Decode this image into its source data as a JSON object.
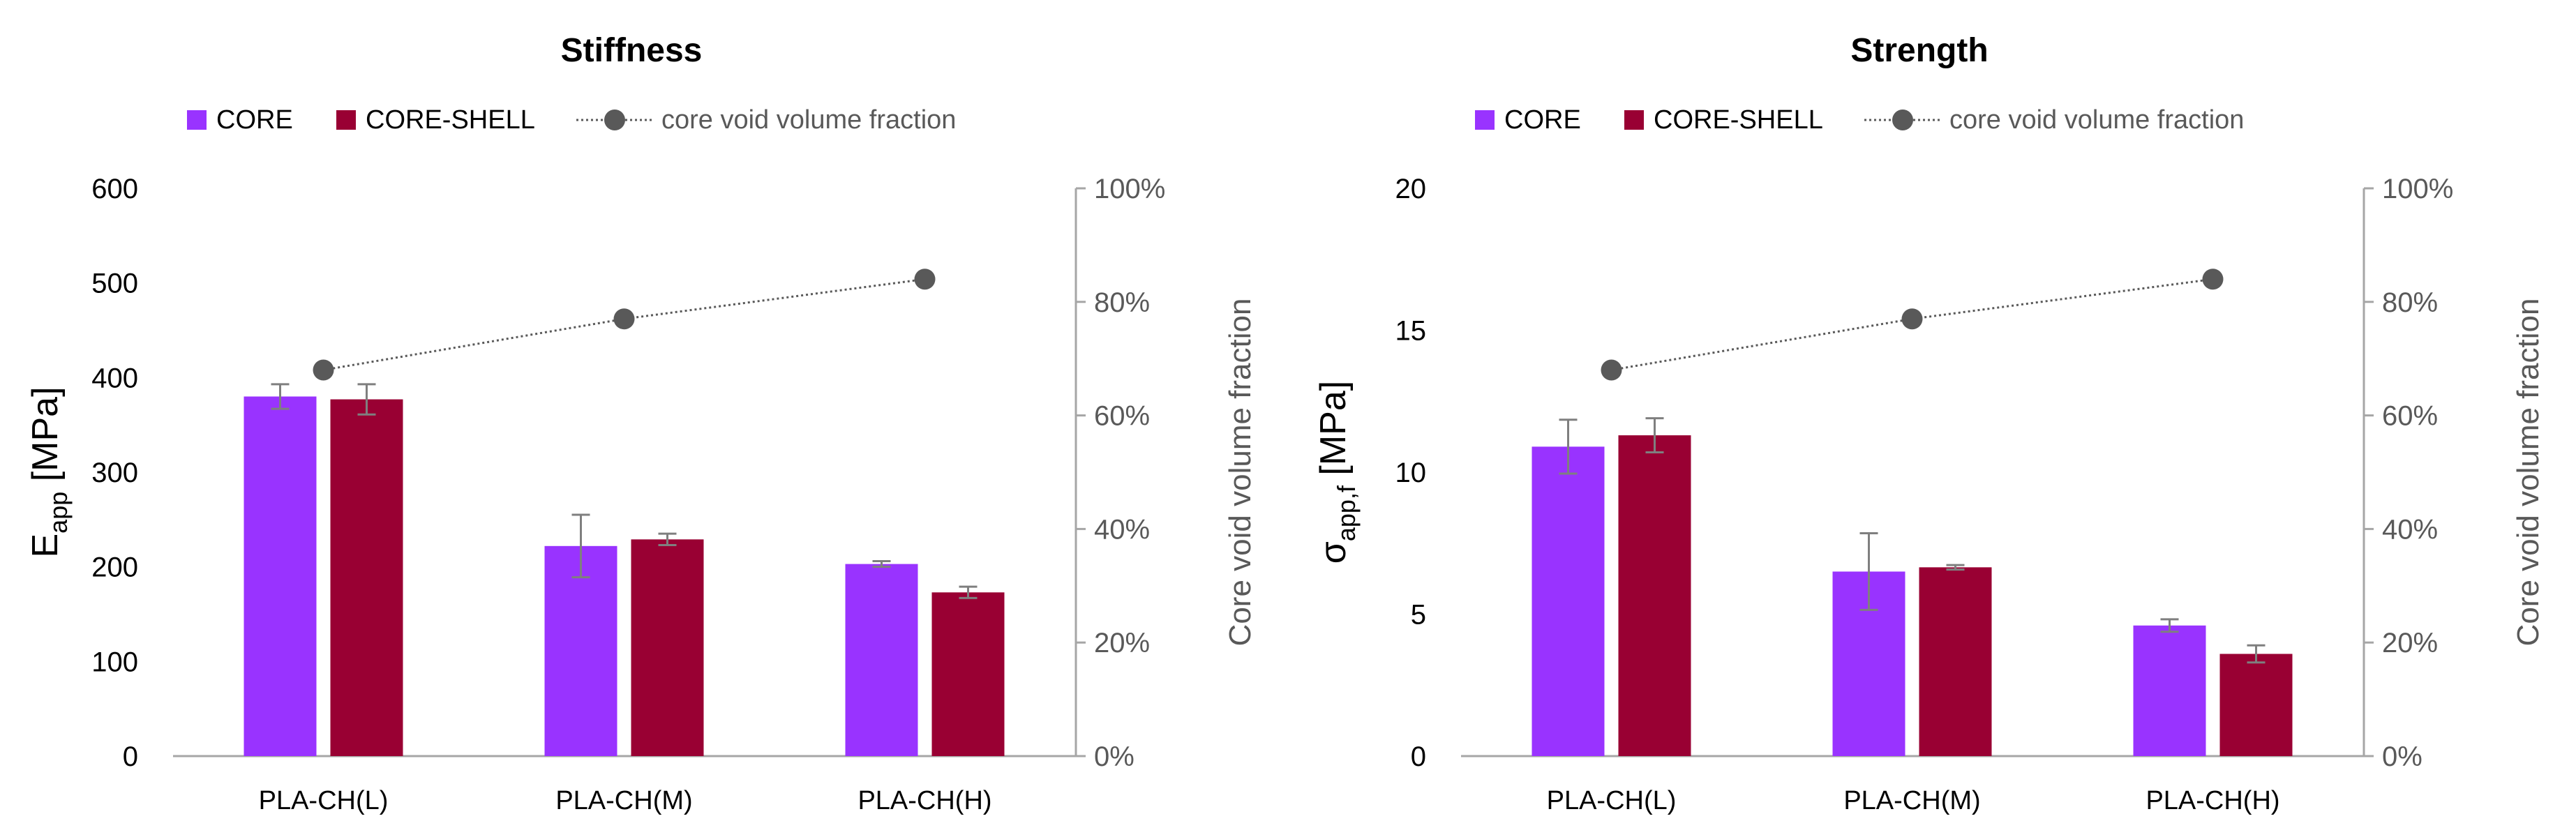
{
  "chart_data": [
    {
      "type": "bar",
      "title": "Stiffness",
      "categories": [
        "PLA-CH(L)",
        "PLA-CH(M)",
        "PLA-CH(H)"
      ],
      "ylabel_main": "E",
      "ylabel_sub": "app",
      "ylabel_unit": " [MPa]",
      "ylim": [
        0,
        600
      ],
      "yticks": [
        0,
        100,
        200,
        300,
        400,
        500,
        600
      ],
      "ylabel_right": "Core void volume fraction",
      "y2lim": [
        0,
        100
      ],
      "y2ticks": [
        "0%",
        "20%",
        "40%",
        "60%",
        "80%",
        "100%"
      ],
      "legend": [
        "CORE",
        "CORE-SHELL",
        "core void volume fraction"
      ],
      "series": [
        {
          "name": "CORE",
          "color": "#9933FF",
          "values": [
            380,
            222,
            203
          ],
          "errors": [
            13,
            33,
            3
          ]
        },
        {
          "name": "CORE-SHELL",
          "color": "#990033",
          "values": [
            377,
            229,
            173
          ],
          "errors": [
            16,
            6,
            6
          ]
        }
      ],
      "line_series": {
        "name": "core void volume fraction",
        "color": "#595959",
        "values": [
          68,
          77,
          84
        ]
      }
    },
    {
      "type": "bar",
      "title": "Strength",
      "categories": [
        "PLA-CH(L)",
        "PLA-CH(M)",
        "PLA-CH(H)"
      ],
      "ylabel_main": "σ",
      "ylabel_sub": "app,f",
      "ylabel_unit": " [MPa]",
      "ylim": [
        0,
        20
      ],
      "yticks": [
        0,
        5,
        10,
        15,
        20
      ],
      "ylabel_right": "Core void volume fraction",
      "y2lim": [
        0,
        100
      ],
      "y2ticks": [
        "0%",
        "20%",
        "40%",
        "60%",
        "80%",
        "100%"
      ],
      "legend": [
        "CORE",
        "CORE-SHELL",
        "core void volume fraction"
      ],
      "series": [
        {
          "name": "CORE",
          "color": "#9933FF",
          "values": [
            10.9,
            6.5,
            4.6
          ],
          "errors": [
            0.95,
            1.35,
            0.22
          ]
        },
        {
          "name": "CORE-SHELL",
          "color": "#990033",
          "values": [
            11.3,
            6.65,
            3.6
          ],
          "errors": [
            0.6,
            0.08,
            0.3
          ]
        }
      ],
      "line_series": {
        "name": "core void volume fraction",
        "color": "#595959",
        "values": [
          68,
          77,
          84
        ]
      }
    }
  ]
}
